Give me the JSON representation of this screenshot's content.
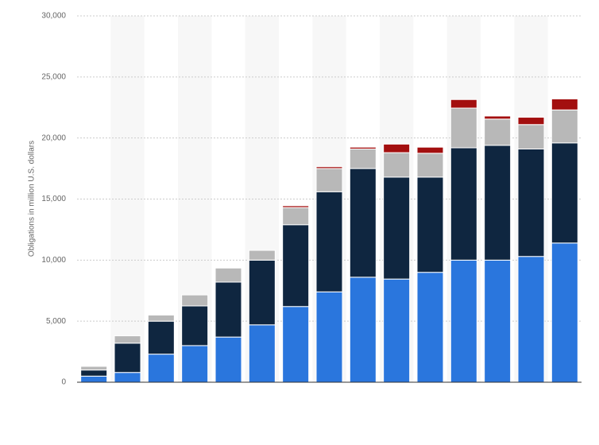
{
  "chart_data": {
    "type": "stacked_bar",
    "y_axis_label": "Obligations in million U.S. dollars",
    "categories": [
      null,
      null,
      null,
      null,
      null,
      null,
      null,
      null,
      null,
      null,
      null,
      null,
      null,
      null,
      null
    ],
    "series": [
      {
        "color": "#2a76dd",
        "values": [
          500,
          800,
          2300,
          3000,
          3700,
          4700,
          6200,
          7400,
          8600,
          8450,
          9000,
          10000,
          10000,
          10300,
          11400
        ]
      },
      {
        "color": "#0f2640",
        "values": [
          500,
          2400,
          2700,
          3250,
          4500,
          5300,
          6700,
          8200,
          8900,
          8350,
          7800,
          9200,
          9400,
          8800,
          8200
        ]
      },
      {
        "color": "#b8b8b8",
        "values": [
          300,
          600,
          500,
          900,
          1150,
          800,
          1400,
          1900,
          1600,
          2000,
          1950,
          3250,
          2150,
          2000,
          2700
        ]
      },
      {
        "color": "#a30f0f",
        "values": [
          0,
          0,
          0,
          0,
          0,
          0,
          150,
          150,
          150,
          700,
          500,
          700,
          250,
          600,
          900
        ]
      }
    ],
    "ylim": [
      0,
      30000
    ],
    "yticks": [
      0,
      {
        "value": 5000,
        "label": "5,000"
      },
      {
        "value": 10000,
        "label": "10,000"
      },
      {
        "value": 15000,
        "label": "15,000"
      },
      {
        "value": 20000,
        "label": "20,000"
      },
      {
        "value": 25000,
        "label": "25,000"
      },
      {
        "value": 30000,
        "label": "30,000"
      }
    ],
    "grid": true
  }
}
